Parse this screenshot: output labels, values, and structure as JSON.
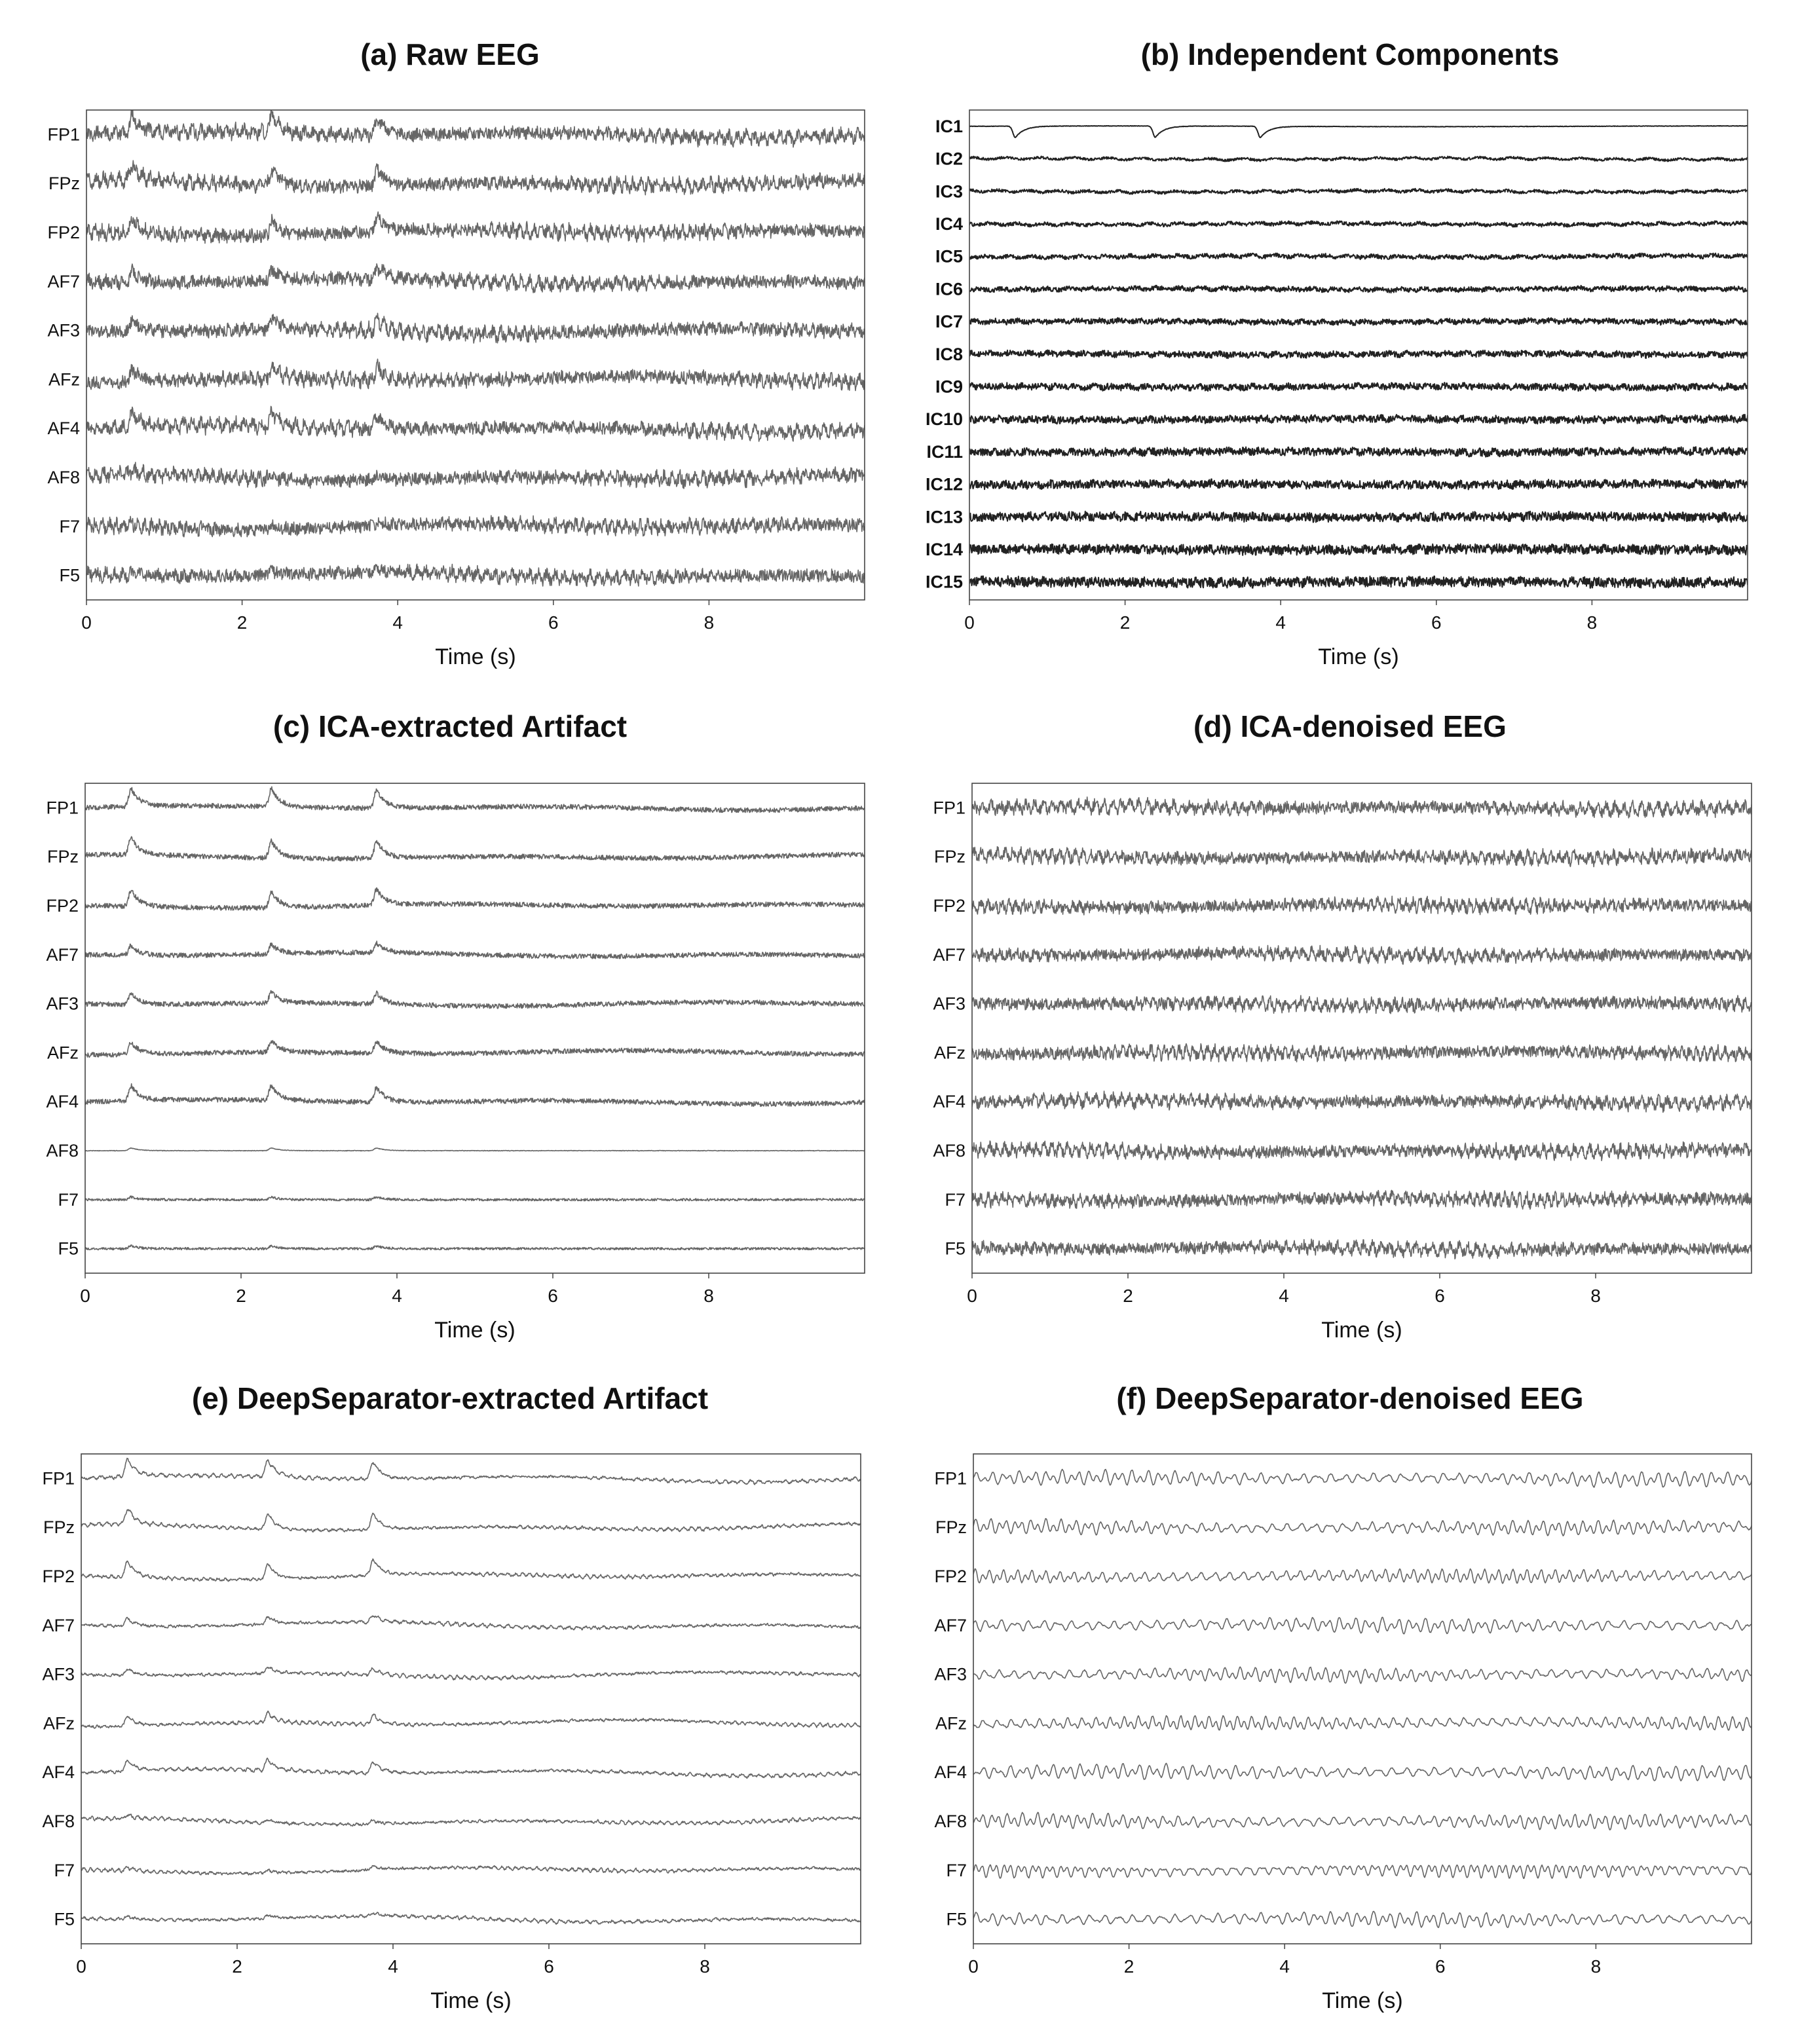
{
  "colors": {
    "trace": "#666666",
    "trace_dark": "#222222",
    "highlight": "#d0021b",
    "frame": "#444444"
  },
  "panels": [
    {
      "id": "a",
      "title": "(a) Raw EEG",
      "style": "raw",
      "channels": [
        "FP1",
        "FPz",
        "FP2",
        "AF7",
        "AF3",
        "AFz",
        "AF4",
        "AF8",
        "F7",
        "F5"
      ],
      "highlight": [],
      "chart_data": {
        "type": "line",
        "xlabel": "Time (s)",
        "xlim": [
          0,
          10
        ],
        "xticks": [
          0,
          2,
          4,
          6,
          8
        ],
        "blink_onsets_s": [
          0.5,
          2.3,
          3.65
        ]
      }
    },
    {
      "id": "b",
      "title": "(b) Independent Components",
      "style": "ic",
      "channels": [
        "IC1",
        "IC2",
        "IC3",
        "IC4",
        "IC5",
        "IC6",
        "IC7",
        "IC8",
        "IC9",
        "IC10",
        "IC11",
        "IC12",
        "IC13",
        "IC14",
        "IC15"
      ],
      "highlight": [
        "IC1",
        "IC10"
      ],
      "chart_data": {
        "type": "line",
        "xlabel": "Time (s)",
        "xlim": [
          0,
          10
        ],
        "xticks": [
          0,
          2,
          4,
          6,
          8
        ],
        "blink_onsets_s": [
          0.5,
          2.3,
          3.65
        ]
      }
    },
    {
      "id": "c",
      "title": "(c) ICA-extracted Artifact",
      "style": "ica_art",
      "channels": [
        "FP1",
        "FPz",
        "FP2",
        "AF7",
        "AF3",
        "AFz",
        "AF4",
        "AF8",
        "F7",
        "F5"
      ],
      "highlight": [],
      "chart_data": {
        "type": "line",
        "xlabel": "Time (s)",
        "xlim": [
          0,
          10
        ],
        "xticks": [
          0,
          2,
          4,
          6,
          8
        ],
        "blink_onsets_s": [
          0.5,
          2.3,
          3.65
        ]
      }
    },
    {
      "id": "d",
      "title": "(d) ICA-denoised EEG",
      "style": "clean",
      "channels": [
        "FP1",
        "FPz",
        "FP2",
        "AF7",
        "AF3",
        "AFz",
        "AF4",
        "AF8",
        "F7",
        "F5"
      ],
      "highlight": [],
      "chart_data": {
        "type": "line",
        "xlabel": "Time (s)",
        "xlim": [
          0,
          10
        ],
        "xticks": [
          0,
          2,
          4,
          6,
          8
        ]
      }
    },
    {
      "id": "e",
      "title": "(e) DeepSeparator-extracted Artifact",
      "style": "ds_art",
      "channels": [
        "FP1",
        "FPz",
        "FP2",
        "AF7",
        "AF3",
        "AFz",
        "AF4",
        "AF8",
        "F7",
        "F5"
      ],
      "highlight": [],
      "chart_data": {
        "type": "line",
        "xlabel": "Time (s)",
        "xlim": [
          0,
          10
        ],
        "xticks": [
          0,
          2,
          4,
          6,
          8
        ],
        "blink_onsets_s": [
          0.5,
          2.3,
          3.65
        ]
      }
    },
    {
      "id": "f",
      "title": "(f) DeepSeparator-denoised EEG",
      "style": "smooth",
      "channels": [
        "FP1",
        "FPz",
        "FP2",
        "AF7",
        "AF3",
        "AFz",
        "AF4",
        "AF8",
        "F7",
        "F5"
      ],
      "highlight": [],
      "chart_data": {
        "type": "line",
        "xlabel": "Time (s)",
        "xlim": [
          0,
          10
        ],
        "xticks": [
          0,
          2,
          4,
          6,
          8
        ]
      }
    }
  ]
}
